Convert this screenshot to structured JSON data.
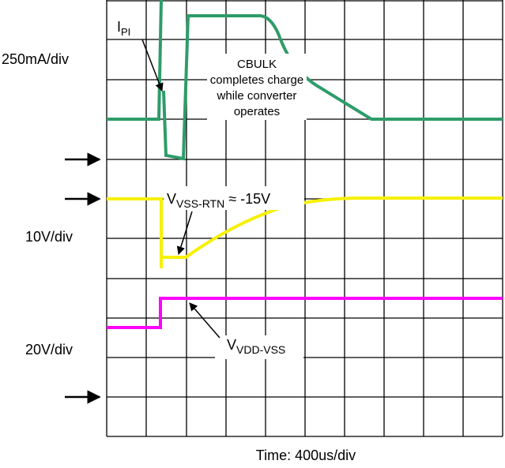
{
  "scales": {
    "current": "250mA/div",
    "vss_rtn": "10V/div",
    "vdd_vss": "20V/div",
    "time": "Time: 400us/div"
  },
  "labels": {
    "ipi": {
      "main": "I",
      "sub": "PI"
    },
    "cbulk": [
      "CBULK",
      "completes charge",
      "while converter",
      "operates"
    ],
    "vss_rtn": {
      "main": "V",
      "sub": "VSS-RTN",
      "suffix": " ≈ -15V"
    },
    "vdd_vss": {
      "main": "V",
      "sub": "VDD-VSS"
    }
  }
}
